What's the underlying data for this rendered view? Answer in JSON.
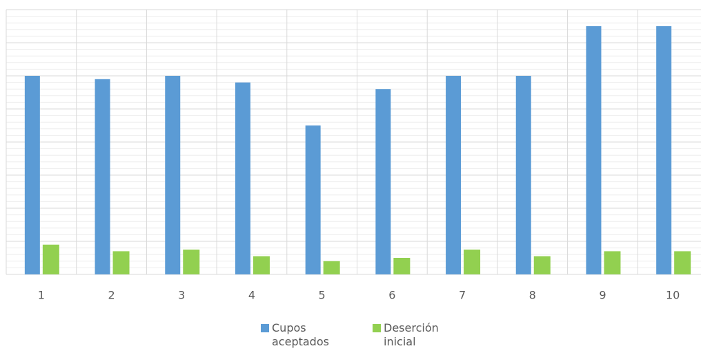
{
  "chart_data": {
    "type": "bar",
    "categories": [
      "1",
      "2",
      "3",
      "4",
      "5",
      "6",
      "7",
      "8",
      "9",
      "10"
    ],
    "series": [
      {
        "name": "Cupos aceptados",
        "color": "#5b9bd5",
        "values": [
          60,
          59,
          60,
          58,
          45,
          56,
          60,
          60,
          75,
          75
        ]
      },
      {
        "name": "Deserción inicial",
        "color": "#92d050",
        "values": [
          9,
          7,
          7.5,
          5.5,
          4,
          5,
          7.5,
          5.5,
          7,
          7
        ]
      }
    ],
    "ylim": [
      0,
      80
    ],
    "yticks": [
      0,
      10,
      20,
      30,
      40,
      50,
      60,
      70,
      80
    ],
    "show_y_tick_labels": false,
    "grid": true,
    "minor_grid": true,
    "legend": "bottom"
  }
}
